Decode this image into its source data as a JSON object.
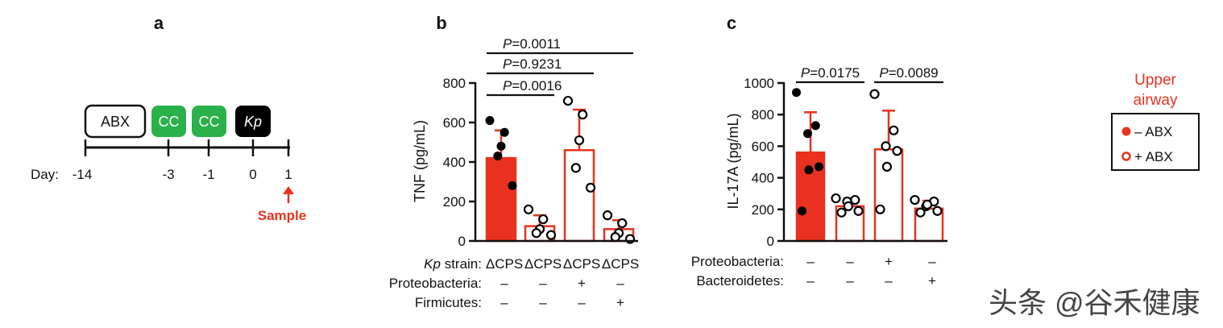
{
  "colors": {
    "red": "#e8321f",
    "green": "#2ab14a",
    "black": "#000000"
  },
  "panel_a": {
    "label": "a",
    "boxes": [
      {
        "text": "ABX",
        "style": "outline"
      },
      {
        "text": "CC",
        "style": "green"
      },
      {
        "text": "CC",
        "style": "green"
      },
      {
        "text": "Kp",
        "style": "black"
      }
    ],
    "day_label": "Day:",
    "days": [
      "-14",
      "-3",
      "-1",
      "0",
      "1"
    ],
    "sample_label": "Sample"
  },
  "legend": {
    "title_line1": "Upper",
    "title_line2": "airway",
    "items": [
      "– ABX",
      "+ ABX"
    ]
  },
  "chart_data": [
    {
      "panel": "b",
      "type": "bar",
      "ylabel": "TNF (pg/mL)",
      "ylim": [
        0,
        800
      ],
      "yticks": [
        0,
        200,
        400,
        600,
        800
      ],
      "categories": [
        "ΔCPS",
        "ΔCPS",
        "ΔCPS",
        "ΔCPS"
      ],
      "fills": [
        "filled",
        "open",
        "open",
        "open"
      ],
      "values": [
        420,
        75,
        460,
        60
      ],
      "errors": [
        140,
        55,
        205,
        45
      ],
      "points": [
        [
          610,
          550,
          480,
          430,
          280
        ],
        [
          160,
          110,
          60,
          40,
          30
        ],
        [
          710,
          640,
          510,
          370,
          270
        ],
        [
          130,
          90,
          40,
          20,
          10
        ]
      ],
      "condition_rows": [
        {
          "label_italic": "Kp",
          "label_rest": " strain:",
          "values": [
            "ΔCPS",
            "ΔCPS",
            "ΔCPS",
            "ΔCPS"
          ]
        },
        {
          "label_italic": "",
          "label_rest": "Proteobacteria:",
          "values": [
            "–",
            "–",
            "+",
            "–"
          ]
        },
        {
          "label_italic": "",
          "label_rest": "Firmicutes:",
          "values": [
            "–",
            "–",
            "–",
            "+"
          ]
        }
      ],
      "pvalues": [
        {
          "p": "P",
          "text": "=0.0011",
          "from": 0,
          "to": 3
        },
        {
          "p": "P",
          "text": "=0.9231",
          "from": 0,
          "to": 2
        },
        {
          "p": "P",
          "text": "=0.0016",
          "from": 0,
          "to": 1
        }
      ]
    },
    {
      "panel": "c",
      "type": "bar",
      "ylabel": "IL-17A (pg/mL)",
      "ylim": [
        0,
        1000
      ],
      "yticks": [
        0,
        200,
        400,
        600,
        800,
        1000
      ],
      "categories": [
        "",
        "",
        "",
        ""
      ],
      "fills": [
        "filled",
        "open",
        "open",
        "open"
      ],
      "values": [
        560,
        220,
        580,
        205
      ],
      "errors": [
        255,
        50,
        245,
        50
      ],
      "points": [
        [
          940,
          730,
          680,
          450,
          470,
          190
        ],
        [
          270,
          260,
          250,
          220,
          190,
          180
        ],
        [
          930,
          700,
          600,
          470,
          570,
          200
        ],
        [
          260,
          250,
          220,
          230,
          190,
          180
        ]
      ],
      "condition_rows": [
        {
          "label_italic": "",
          "label_rest": "Proteobacteria:",
          "values": [
            "–",
            "–",
            "+",
            "–"
          ]
        },
        {
          "label_italic": "",
          "label_rest": "Bacteroidetes:",
          "values": [
            "–",
            "–",
            "–",
            "+"
          ]
        }
      ],
      "pvalues": [
        {
          "p": "P",
          "text": "=0.0175",
          "from": 0,
          "to": 1
        },
        {
          "p": "P",
          "text": "=0.0089",
          "from": 2,
          "to": 3
        }
      ]
    }
  ],
  "watermark": "头条 @谷禾健康"
}
